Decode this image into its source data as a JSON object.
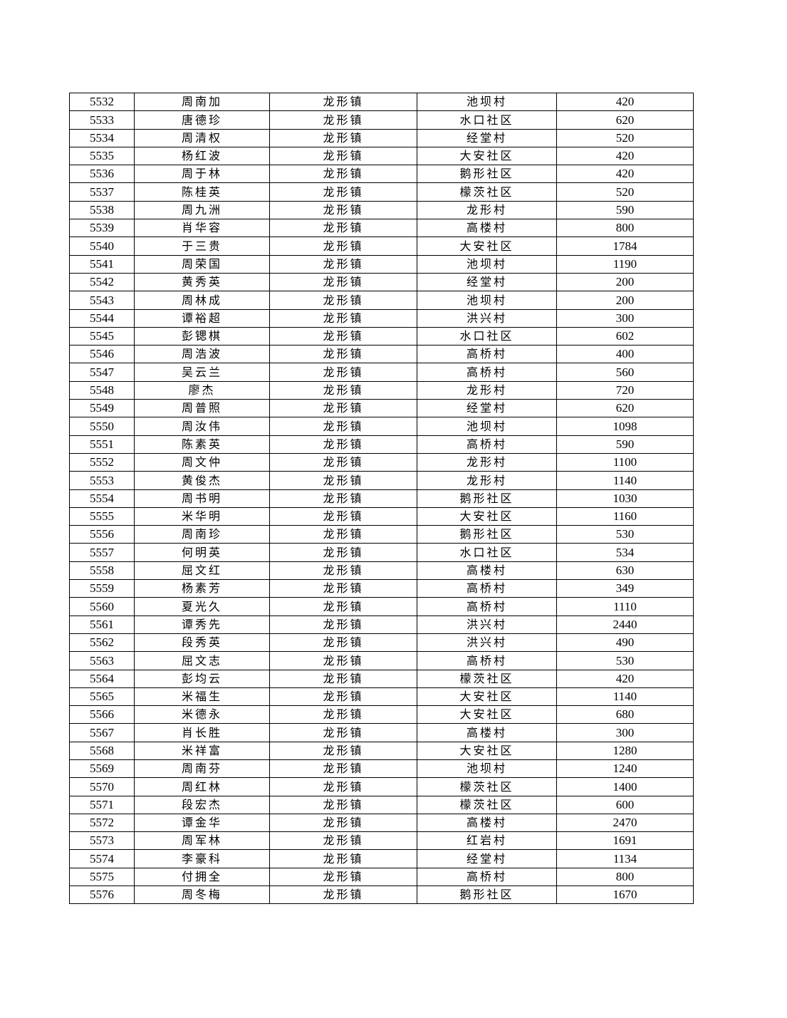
{
  "table": {
    "rows": [
      [
        "5532",
        "周南加",
        "龙形镇",
        "池坝村",
        "420"
      ],
      [
        "5533",
        "唐德珍",
        "龙形镇",
        "水口社区",
        "620"
      ],
      [
        "5534",
        "周清权",
        "龙形镇",
        "经堂村",
        "520"
      ],
      [
        "5535",
        "杨红波",
        "龙形镇",
        "大安社区",
        "420"
      ],
      [
        "5536",
        "周于林",
        "龙形镇",
        "鹅形社区",
        "420"
      ],
      [
        "5537",
        "陈桂英",
        "龙形镇",
        "檬茨社区",
        "520"
      ],
      [
        "5538",
        "周九洲",
        "龙形镇",
        "龙形村",
        "590"
      ],
      [
        "5539",
        "肖华容",
        "龙形镇",
        "高楼村",
        "800"
      ],
      [
        "5540",
        "于三贵",
        "龙形镇",
        "大安社区",
        "1784"
      ],
      [
        "5541",
        "周荣国",
        "龙形镇",
        "池坝村",
        "1190"
      ],
      [
        "5542",
        "黄秀英",
        "龙形镇",
        "经堂村",
        "200"
      ],
      [
        "5543",
        "周林成",
        "龙形镇",
        "池坝村",
        "200"
      ],
      [
        "5544",
        "谭裕超",
        "龙形镇",
        "洪兴村",
        "300"
      ],
      [
        "5545",
        "彭锶棋",
        "龙形镇",
        "水口社区",
        "602"
      ],
      [
        "5546",
        "周浩波",
        "龙形镇",
        "高桥村",
        "400"
      ],
      [
        "5547",
        "吴云兰",
        "龙形镇",
        "高桥村",
        "560"
      ],
      [
        "5548",
        "廖杰",
        "龙形镇",
        "龙形村",
        "720"
      ],
      [
        "5549",
        "周普照",
        "龙形镇",
        "经堂村",
        "620"
      ],
      [
        "5550",
        "周汝伟",
        "龙形镇",
        "池坝村",
        "1098"
      ],
      [
        "5551",
        "陈素英",
        "龙形镇",
        "高桥村",
        "590"
      ],
      [
        "5552",
        "周文仲",
        "龙形镇",
        "龙形村",
        "1100"
      ],
      [
        "5553",
        "黄俊杰",
        "龙形镇",
        "龙形村",
        "1140"
      ],
      [
        "5554",
        "周书明",
        "龙形镇",
        "鹅形社区",
        "1030"
      ],
      [
        "5555",
        "米华明",
        "龙形镇",
        "大安社区",
        "1160"
      ],
      [
        "5556",
        "周南珍",
        "龙形镇",
        "鹅形社区",
        "530"
      ],
      [
        "5557",
        "何明英",
        "龙形镇",
        "水口社区",
        "534"
      ],
      [
        "5558",
        "屈文红",
        "龙形镇",
        "高楼村",
        "630"
      ],
      [
        "5559",
        "杨素芳",
        "龙形镇",
        "高桥村",
        "349"
      ],
      [
        "5560",
        "夏光久",
        "龙形镇",
        "高桥村",
        "1110"
      ],
      [
        "5561",
        "谭秀先",
        "龙形镇",
        "洪兴村",
        "2440"
      ],
      [
        "5562",
        "段秀英",
        "龙形镇",
        "洪兴村",
        "490"
      ],
      [
        "5563",
        "屈文志",
        "龙形镇",
        "高桥村",
        "530"
      ],
      [
        "5564",
        "彭均云",
        "龙形镇",
        "檬茨社区",
        "420"
      ],
      [
        "5565",
        "米福生",
        "龙形镇",
        "大安社区",
        "1140"
      ],
      [
        "5566",
        "米德永",
        "龙形镇",
        "大安社区",
        "680"
      ],
      [
        "5567",
        "肖长胜",
        "龙形镇",
        "高楼村",
        "300"
      ],
      [
        "5568",
        "米祥富",
        "龙形镇",
        "大安社区",
        "1280"
      ],
      [
        "5569",
        "周南芬",
        "龙形镇",
        "池坝村",
        "1240"
      ],
      [
        "5570",
        "周红林",
        "龙形镇",
        "檬茨社区",
        "1400"
      ],
      [
        "5571",
        "段宏杰",
        "龙形镇",
        "檬茨社区",
        "600"
      ],
      [
        "5572",
        "谭金华",
        "龙形镇",
        "高楼村",
        "2470"
      ],
      [
        "5573",
        "周军林",
        "龙形镇",
        "红岩村",
        "1691"
      ],
      [
        "5574",
        "李豪科",
        "龙形镇",
        "经堂村",
        "1134"
      ],
      [
        "5575",
        "付拥全",
        "龙形镇",
        "高桥村",
        "800"
      ],
      [
        "5576",
        "周冬梅",
        "龙形镇",
        "鹅形社区",
        "1670"
      ]
    ]
  }
}
